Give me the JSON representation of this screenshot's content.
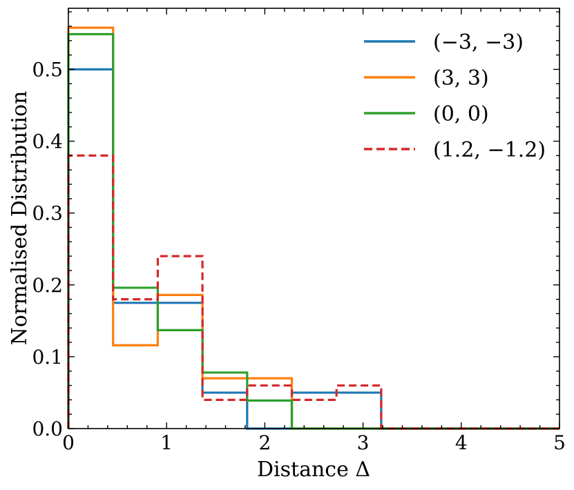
{
  "chart_data": {
    "type": "step",
    "title": "",
    "xlabel": "Distance Δ",
    "ylabel": "Normalised Distribution",
    "xlim": [
      0,
      5
    ],
    "ylim": [
      0,
      0.585
    ],
    "xticks": [
      0,
      1,
      2,
      3,
      4,
      5
    ],
    "xtick_labels": [
      "0",
      "1",
      "2",
      "3",
      "4",
      "5"
    ],
    "yticks": [
      0.0,
      0.1,
      0.2,
      0.3,
      0.4,
      0.5
    ],
    "ytick_labels": [
      "0.0",
      "0.1",
      "0.2",
      "0.3",
      "0.4",
      "0.5"
    ],
    "bin_edges": [
      0,
      0.455,
      0.91,
      1.365,
      1.82,
      2.275,
      2.73,
      3.185,
      5.0
    ],
    "legend_position": "top-right",
    "series": [
      {
        "name": "(−3, −3)",
        "color": "#1f77b4",
        "dashed": false,
        "values": [
          0.5,
          0.175,
          0.175,
          0.05,
          0.0,
          0.05,
          0.05,
          0.0
        ]
      },
      {
        "name": "(3, 3)",
        "color": "#ff7f0e",
        "dashed": false,
        "values": [
          0.558,
          0.116,
          0.186,
          0.07,
          0.07,
          0.0,
          0.0,
          0.0
        ]
      },
      {
        "name": "(0, 0)",
        "color": "#2ca02c",
        "dashed": false,
        "values": [
          0.549,
          0.196,
          0.137,
          0.078,
          0.039,
          0.0,
          0.0,
          0.0
        ]
      },
      {
        "name": "(1.2, −1.2)",
        "color": "#d62728",
        "dashed": true,
        "values": [
          0.38,
          0.18,
          0.24,
          0.04,
          0.06,
          0.04,
          0.06,
          0.0
        ]
      }
    ]
  }
}
